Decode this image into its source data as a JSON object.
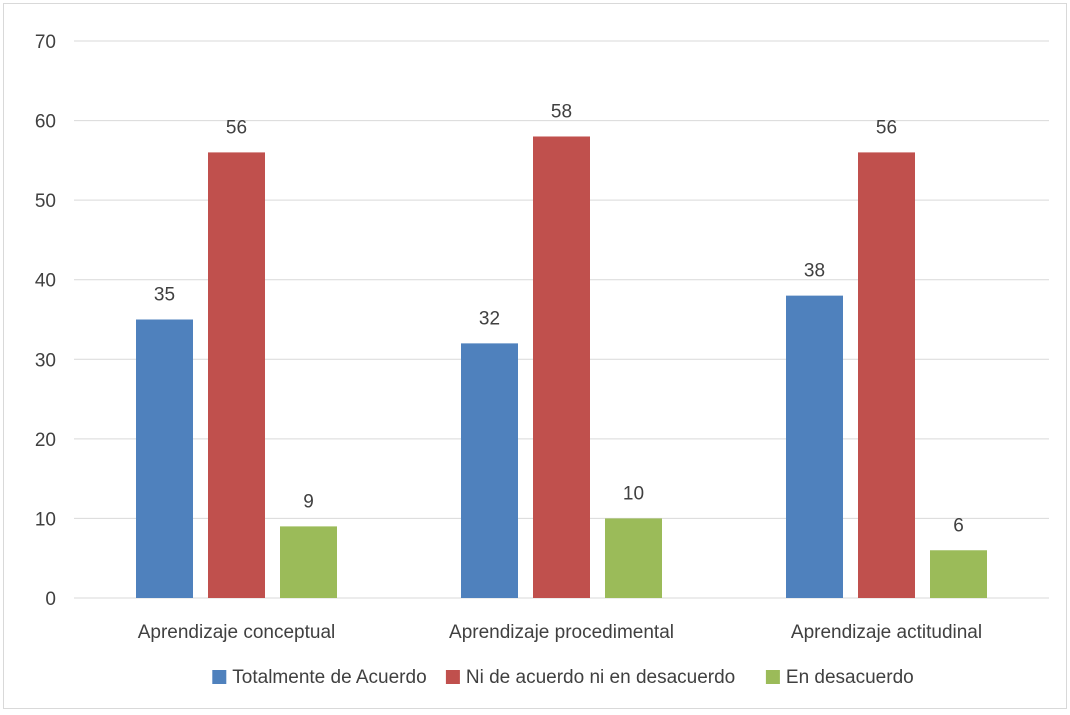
{
  "chart_data": {
    "type": "bar",
    "title": "",
    "xlabel": "",
    "ylabel": "",
    "categories": [
      "Aprendizaje conceptual",
      "Aprendizaje procedimental",
      "Aprendizaje actitudinal"
    ],
    "series": [
      {
        "name": "Totalmente de Acuerdo",
        "values": [
          35,
          32,
          38
        ],
        "color": "#4f81bd"
      },
      {
        "name": "Ni de acuerdo ni en desacuerdo",
        "values": [
          56,
          58,
          56
        ],
        "color": "#c0504d"
      },
      {
        "name": "En desacuerdo",
        "values": [
          9,
          10,
          6
        ],
        "color": "#9bbb59"
      }
    ],
    "ylim": [
      0,
      70
    ],
    "yticks": [
      0,
      10,
      20,
      30,
      40,
      50,
      60,
      70
    ],
    "grid": true,
    "gridline_color": "#d9d9d9",
    "data_labels": true,
    "legend_position": "bottom"
  }
}
